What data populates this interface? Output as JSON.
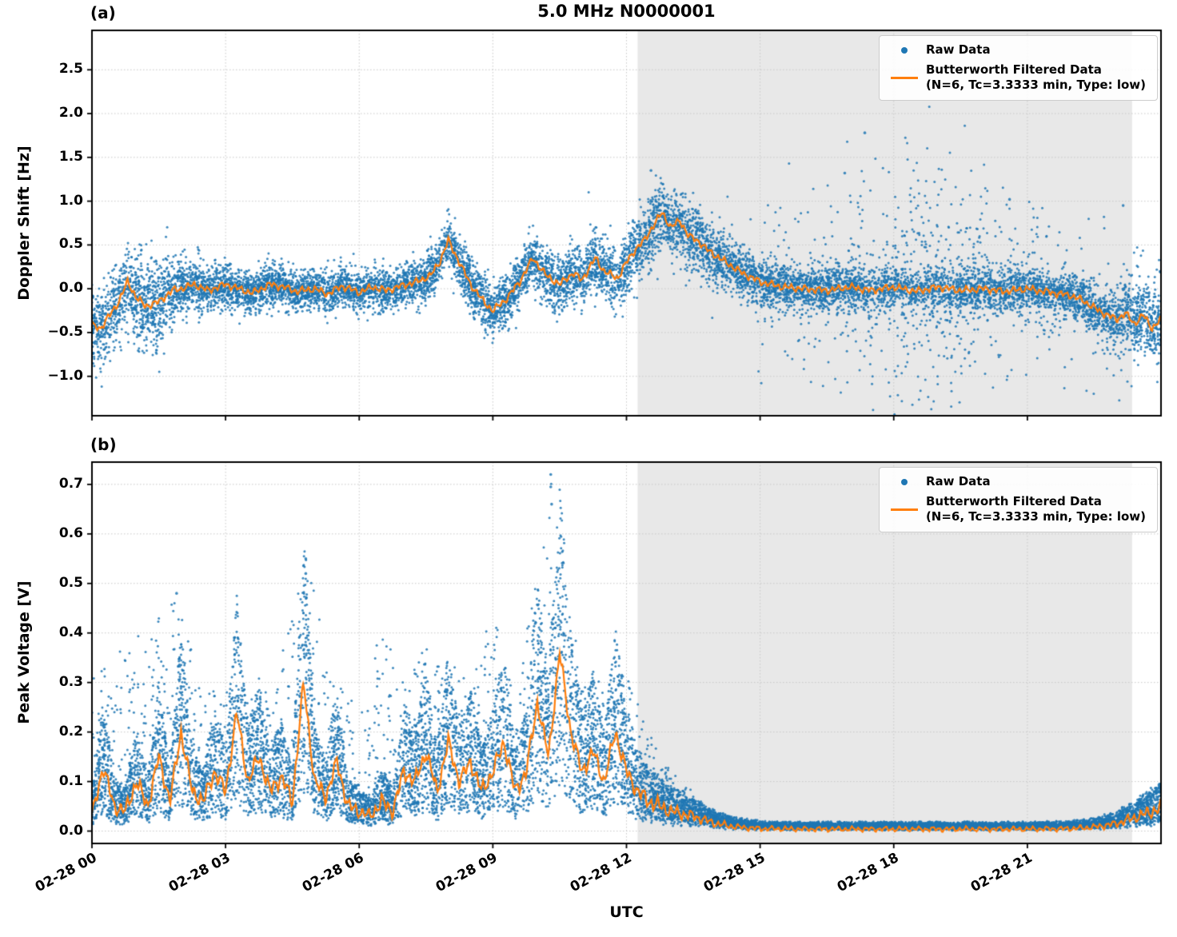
{
  "figure": {
    "title": "5.0 MHz N0000001",
    "xlabel": "UTC"
  },
  "chart_data": [
    {
      "type": "scatter+line",
      "panel_label": "(a)",
      "title": "5.0 MHz N0000001",
      "ylabel": "Doppler Shift [Hz]",
      "ylim": [
        -1.45,
        2.95
      ],
      "yticks": [
        -1.0,
        -0.5,
        0.0,
        0.5,
        1.0,
        1.5,
        2.0,
        2.5
      ],
      "ytick_labels": [
        "−1.0",
        "−0.5",
        "0.0",
        "0.5",
        "1.0",
        "1.5",
        "2.0",
        "2.5"
      ],
      "xlim_hours": [
        0,
        24
      ],
      "xticks_hours": [
        0,
        3,
        6,
        9,
        12,
        15,
        18,
        21
      ],
      "xtick_labels": [
        "02-28 00",
        "02-28 03",
        "02-28 06",
        "02-28 09",
        "02-28 12",
        "02-28 15",
        "02-28 18",
        "02-28 21"
      ],
      "show_xtick_labels": false,
      "grid": true,
      "shade_hours": [
        12.25,
        23.35
      ],
      "legend": {
        "raw": "Raw Data",
        "filtered_1": "Butterworth Filtered Data",
        "filtered_2": "(N=6, Tc=3.3333 min, Type: low)",
        "position": "upper right"
      },
      "colors": {
        "raw": "#1f77b4",
        "filtered": "#ff7f0e",
        "shade": "#e8e8e8"
      },
      "filtered_line": {
        "x": [
          0,
          0.2,
          0.4,
          0.6,
          0.8,
          1.0,
          1.2,
          1.5,
          1.8,
          2.0,
          2.3,
          2.6,
          3.0,
          3.3,
          3.6,
          4.0,
          4.3,
          4.6,
          5.0,
          5.3,
          5.6,
          6.0,
          6.3,
          6.6,
          7.0,
          7.3,
          7.6,
          7.8,
          8.0,
          8.2,
          8.5,
          8.8,
          9.0,
          9.3,
          9.6,
          9.9,
          10.2,
          10.5,
          10.8,
          11.0,
          11.3,
          11.5,
          11.8,
          12.0,
          12.2,
          12.4,
          12.6,
          12.8,
          13.0,
          13.2,
          13.4,
          13.6,
          13.8,
          14.0,
          14.3,
          14.6,
          15.0,
          15.5,
          16.0,
          16.5,
          17.0,
          17.5,
          18.0,
          18.5,
          19.0,
          19.5,
          20.0,
          20.5,
          21.0,
          21.5,
          22.0,
          22.3,
          22.6,
          23.0,
          23.2,
          23.4,
          23.6,
          23.8,
          24.0
        ],
        "y": [
          -0.42,
          -0.45,
          -0.3,
          -0.15,
          0.08,
          -0.1,
          -0.2,
          -0.15,
          -0.02,
          0.0,
          0.05,
          -0.02,
          0.05,
          0.0,
          -0.05,
          0.05,
          0.02,
          -0.03,
          0.0,
          -0.06,
          0.03,
          -0.04,
          0.02,
          -0.02,
          0.04,
          0.08,
          0.15,
          0.3,
          0.55,
          0.35,
          0.05,
          -0.15,
          -0.25,
          -0.12,
          0.08,
          0.35,
          0.15,
          0.05,
          0.18,
          0.1,
          0.35,
          0.2,
          0.12,
          0.3,
          0.45,
          0.55,
          0.72,
          0.87,
          0.7,
          0.78,
          0.6,
          0.55,
          0.45,
          0.38,
          0.28,
          0.18,
          0.08,
          0.02,
          0.0,
          -0.02,
          0.02,
          -0.02,
          0.02,
          -0.03,
          0.02,
          -0.02,
          0.0,
          -0.03,
          0.0,
          -0.04,
          -0.08,
          -0.15,
          -0.25,
          -0.35,
          -0.28,
          -0.4,
          -0.3,
          -0.45,
          -0.35
        ]
      },
      "raw_envelope": {
        "x": [
          0,
          0.5,
          1,
          1.5,
          2,
          3,
          5,
          7,
          8,
          9,
          10,
          11,
          12,
          12.7,
          13.5,
          14.5,
          15.5,
          16,
          16.5,
          17,
          17.5,
          18,
          18.5,
          19,
          19.5,
          20,
          20.5,
          21,
          21.5,
          22,
          22.5,
          23,
          23.5,
          24
        ],
        "spread": [
          0.22,
          0.2,
          0.25,
          0.28,
          0.15,
          0.12,
          0.12,
          0.12,
          0.15,
          0.15,
          0.15,
          0.16,
          0.18,
          0.2,
          0.18,
          0.15,
          0.12,
          0.12,
          0.12,
          0.12,
          0.12,
          0.12,
          0.12,
          0.12,
          0.12,
          0.12,
          0.12,
          0.12,
          0.12,
          0.12,
          0.14,
          0.16,
          0.2,
          0.22
        ],
        "outlier_frac": [
          0.02,
          0.02,
          0.04,
          0.04,
          0.01,
          0.005,
          0.005,
          0.005,
          0.01,
          0.01,
          0.01,
          0.01,
          0.02,
          0.02,
          0.02,
          0.03,
          0.08,
          0.12,
          0.16,
          0.2,
          0.25,
          0.28,
          0.3,
          0.3,
          0.28,
          0.25,
          0.2,
          0.15,
          0.12,
          0.1,
          0.12,
          0.15,
          0.18,
          0.1
        ],
        "outlier_spread": [
          0.3,
          0.3,
          0.35,
          0.35,
          0.2,
          0.15,
          0.15,
          0.2,
          0.25,
          0.3,
          0.3,
          0.3,
          0.35,
          0.4,
          0.4,
          0.4,
          0.5,
          0.55,
          0.6,
          0.65,
          0.7,
          0.75,
          0.75,
          0.75,
          0.7,
          0.65,
          0.6,
          0.5,
          0.45,
          0.4,
          0.4,
          0.4,
          0.35,
          0.3
        ]
      },
      "extra_points": [
        [
          12.55,
          1.35
        ],
        [
          16.9,
          1.32
        ],
        [
          17.35,
          1.78
        ],
        [
          20.6,
          1.02
        ],
        [
          23.15,
          0.95
        ]
      ],
      "n_raw_points": 12000,
      "line_wiggle": 0.05,
      "seed": 42
    },
    {
      "type": "scatter+line",
      "panel_label": "(b)",
      "ylabel": "Peak Voltage [V]",
      "ylim": [
        -0.025,
        0.745
      ],
      "yticks": [
        0.0,
        0.1,
        0.2,
        0.3,
        0.4,
        0.5,
        0.6,
        0.7
      ],
      "ytick_labels": [
        "0.0",
        "0.1",
        "0.2",
        "0.3",
        "0.4",
        "0.5",
        "0.6",
        "0.7"
      ],
      "xlim_hours": [
        0,
        24
      ],
      "xticks_hours": [
        0,
        3,
        6,
        9,
        12,
        15,
        18,
        21
      ],
      "xtick_labels": [
        "02-28 00",
        "02-28 03",
        "02-28 06",
        "02-28 09",
        "02-28 12",
        "02-28 15",
        "02-28 18",
        "02-28 21"
      ],
      "show_xtick_labels": true,
      "grid": true,
      "shade_hours": [
        12.25,
        23.35
      ],
      "legend": {
        "raw": "Raw Data",
        "filtered_1": "Butterworth Filtered Data",
        "filtered_2": "(N=6, Tc=3.3333 min, Type: low)",
        "position": "upper right"
      },
      "colors": {
        "raw": "#1f77b4",
        "filtered": "#ff7f0e",
        "shade": "#e8e8e8"
      },
      "filtered_line": {
        "x": [
          0,
          0.25,
          0.5,
          0.75,
          1,
          1.25,
          1.5,
          1.75,
          2,
          2.25,
          2.5,
          2.75,
          3,
          3.25,
          3.5,
          3.75,
          4,
          4.25,
          4.5,
          4.75,
          5,
          5.25,
          5.5,
          5.75,
          6,
          6.25,
          6.5,
          6.75,
          7,
          7.25,
          7.5,
          7.75,
          8,
          8.25,
          8.5,
          8.75,
          9,
          9.25,
          9.5,
          9.75,
          10,
          10.25,
          10.5,
          10.75,
          11,
          11.25,
          11.5,
          11.75,
          12,
          12.25,
          12.5,
          12.75,
          13,
          13.5,
          14,
          14.5,
          15,
          16,
          17,
          18,
          19,
          20,
          21,
          22,
          22.5,
          23,
          23.5,
          23.8,
          24
        ],
        "y": [
          0.03,
          0.13,
          0.05,
          0.04,
          0.1,
          0.05,
          0.15,
          0.06,
          0.2,
          0.08,
          0.06,
          0.12,
          0.08,
          0.24,
          0.1,
          0.15,
          0.08,
          0.11,
          0.06,
          0.3,
          0.1,
          0.07,
          0.14,
          0.05,
          0.04,
          0.03,
          0.06,
          0.04,
          0.12,
          0.1,
          0.16,
          0.08,
          0.18,
          0.1,
          0.14,
          0.08,
          0.12,
          0.18,
          0.08,
          0.12,
          0.26,
          0.15,
          0.36,
          0.2,
          0.12,
          0.16,
          0.1,
          0.2,
          0.12,
          0.08,
          0.06,
          0.05,
          0.04,
          0.03,
          0.015,
          0.008,
          0.005,
          0.004,
          0.004,
          0.004,
          0.004,
          0.004,
          0.004,
          0.005,
          0.008,
          0.015,
          0.03,
          0.04,
          0.045
        ]
      },
      "raw_envelope": {
        "x": [
          0,
          1,
          1.9,
          2.5,
          3,
          3.5,
          4,
          4.8,
          5.5,
          6,
          6.5,
          7,
          7.5,
          8,
          8.5,
          9,
          9.5,
          10,
          10.3,
          10.7,
          11,
          11.5,
          12,
          12.5,
          13,
          13.5,
          14,
          15,
          16,
          18,
          20,
          22,
          23,
          23.5,
          24
        ],
        "peak": [
          0.31,
          0.4,
          0.48,
          0.27,
          0.3,
          0.26,
          0.3,
          0.55,
          0.3,
          0.25,
          0.42,
          0.3,
          0.4,
          0.35,
          0.3,
          0.45,
          0.3,
          0.52,
          0.72,
          0.45,
          0.35,
          0.3,
          0.32,
          0.2,
          0.12,
          0.08,
          0.04,
          0.015,
          0.01,
          0.01,
          0.01,
          0.012,
          0.03,
          0.06,
          0.1
        ]
      },
      "extra_points": [
        [
          1.9,
          0.48
        ],
        [
          4.8,
          0.55
        ],
        [
          4.8,
          0.52
        ],
        [
          10.3,
          0.72
        ],
        [
          10.3,
          0.695
        ],
        [
          10.32,
          0.66
        ]
      ],
      "n_raw_points": 14000,
      "line_wiggle": 0.02,
      "seed": 7
    }
  ]
}
